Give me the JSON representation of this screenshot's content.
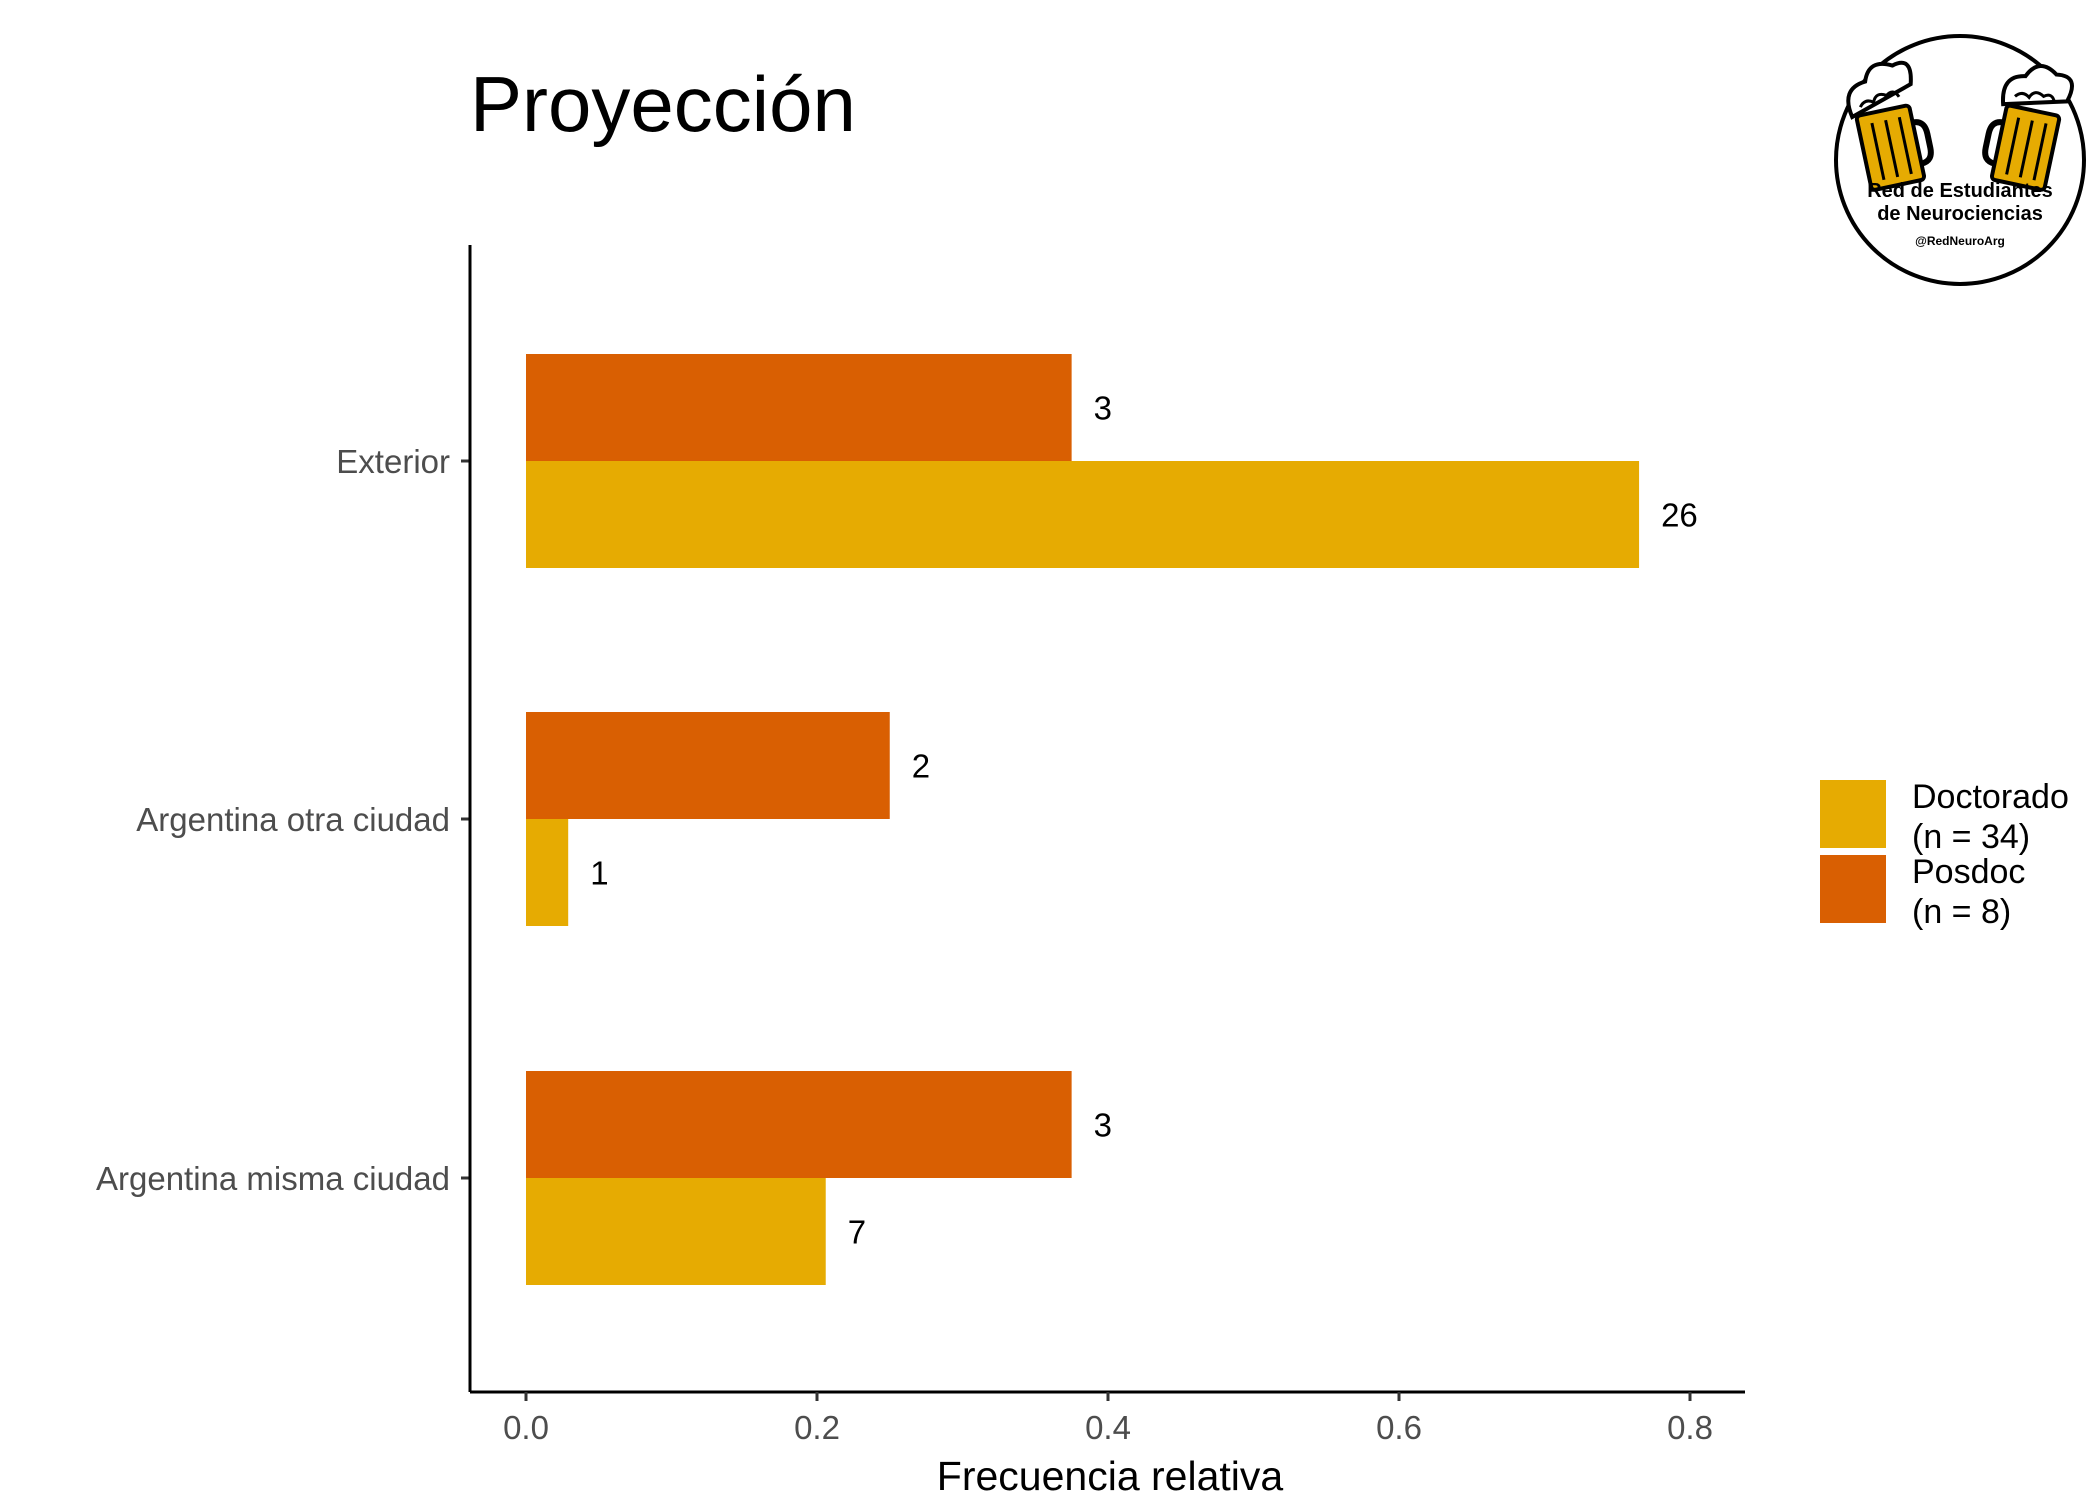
{
  "chart_data": {
    "type": "bar",
    "orientation": "horizontal",
    "title": "Proyección",
    "xlabel": "Frecuencia relativa",
    "ylabel": "",
    "xlim": [
      0,
      0.8
    ],
    "xticks": [
      0.0,
      0.2,
      0.4,
      0.6,
      0.8
    ],
    "xtick_labels": [
      "0.0",
      "0.2",
      "0.4",
      "0.6",
      "0.8"
    ],
    "categories": [
      "Exterior",
      "Argentina otra ciudad",
      "Argentina misma ciudad"
    ],
    "series": [
      {
        "name": "Posdoc",
        "legend_lines": [
          "Posdoc",
          "(n = 8)"
        ],
        "color": "#D95F02",
        "values": [
          0.375,
          0.25,
          0.375
        ],
        "counts": [
          "3",
          "2",
          "3"
        ]
      },
      {
        "name": "Doctorado",
        "legend_lines": [
          "Doctorado",
          "(n = 34)"
        ],
        "color": "#E6AB02",
        "values": [
          0.765,
          0.029,
          0.206
        ],
        "counts": [
          "26",
          "1",
          "7"
        ]
      }
    ],
    "legend_order": [
      1,
      0
    ],
    "legend_position": "right",
    "grid": false
  },
  "logo": {
    "line1": "Red de Estudiantes",
    "line2": "de Neurociencias",
    "handle": "@RedNeuroArg",
    "accent_color": "#E6AB02"
  }
}
